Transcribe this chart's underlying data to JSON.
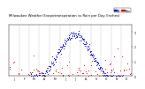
{
  "title": "Milwaukee Weather Evapotranspiration vs Rain per Day (Inches)",
  "title_fontsize": 2.8,
  "et_color": "#0000cc",
  "rain_color": "#cc0000",
  "legend_et": "ET",
  "legend_rain": "Rain",
  "background_color": "#ffffff",
  "ylim": [
    0,
    0.35
  ],
  "xlim": [
    0,
    365
  ],
  "tick_fontsize": 2.2,
  "month_starts": [
    0,
    31,
    59,
    90,
    120,
    151,
    181,
    212,
    243,
    273,
    304,
    334
  ],
  "month_labels": [
    "J",
    "F",
    "M",
    "A",
    "M",
    "J",
    "J",
    "A",
    "S",
    "O",
    "N",
    "D"
  ],
  "yticks": [
    0.0,
    0.1,
    0.2,
    0.3
  ],
  "ytick_labels": [
    "0",
    ".1",
    ".2",
    ".3"
  ],
  "dot_size": 0.4,
  "vline_color": "#aaaaaa",
  "vline_lw": 0.3
}
